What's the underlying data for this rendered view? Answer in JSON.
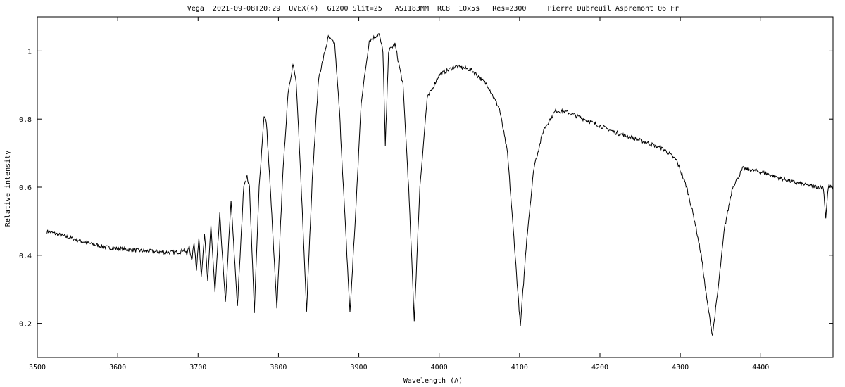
{
  "chart_data": {
    "type": "line",
    "title": "Vega  2021-09-08T20:29  UVEX(4)  G1200 Slit=25   ASI183MM  RC8  10x5s   Res=2300     Pierre Dubreuil Aspremont 06 Fr",
    "xlabel": "Wavelength (A)",
    "ylabel": "Relative intensity",
    "xlim": [
      3500,
      4490
    ],
    "ylim": [
      0.1,
      1.1
    ],
    "x_ticks": [
      "3500",
      "3600",
      "3700",
      "3800",
      "3900",
      "4000",
      "4100",
      "4200",
      "4300",
      "4400"
    ],
    "y_ticks": [
      "0.2",
      "0.4",
      "0.6",
      "0.8",
      "1"
    ],
    "grid": false,
    "legend": "none",
    "color": "#000000",
    "series": [
      {
        "points": [
          [
            3512,
            0.47
          ],
          [
            3520,
            0.465
          ],
          [
            3530,
            0.458
          ],
          [
            3540,
            0.452
          ],
          [
            3550,
            0.445
          ],
          [
            3560,
            0.438
          ],
          [
            3570,
            0.432
          ],
          [
            3580,
            0.426
          ],
          [
            3590,
            0.422
          ],
          [
            3600,
            0.42
          ],
          [
            3610,
            0.417
          ],
          [
            3620,
            0.415
          ],
          [
            3630,
            0.413
          ],
          [
            3640,
            0.412
          ],
          [
            3650,
            0.41
          ],
          [
            3660,
            0.409
          ],
          [
            3670,
            0.408
          ],
          [
            3678,
            0.41
          ],
          [
            3683,
            0.42
          ],
          [
            3686,
            0.4
          ],
          [
            3689,
            0.43
          ],
          [
            3692,
            0.38
          ],
          [
            3695,
            0.44
          ],
          [
            3698,
            0.36
          ],
          [
            3701,
            0.45
          ],
          [
            3704,
            0.34
          ],
          [
            3708,
            0.465
          ],
          [
            3712,
            0.32
          ],
          [
            3716,
            0.49
          ],
          [
            3721,
            0.29
          ],
          [
            3727,
            0.52
          ],
          [
            3734,
            0.26
          ],
          [
            3741,
            0.56
          ],
          [
            3749,
            0.25
          ],
          [
            3757,
            0.61
          ],
          [
            3761,
            0.63
          ],
          [
            3764,
            0.6
          ],
          [
            3770,
            0.235
          ],
          [
            3776,
            0.6
          ],
          [
            3782,
            0.81
          ],
          [
            3785,
            0.79
          ],
          [
            3791,
            0.55
          ],
          [
            3798,
            0.24
          ],
          [
            3805,
            0.62
          ],
          [
            3812,
            0.88
          ],
          [
            3818,
            0.96
          ],
          [
            3822,
            0.91
          ],
          [
            3828,
            0.62
          ],
          [
            3835,
            0.24
          ],
          [
            3842,
            0.62
          ],
          [
            3850,
            0.92
          ],
          [
            3862,
            1.04
          ],
          [
            3870,
            1.02
          ],
          [
            3876,
            0.82
          ],
          [
            3883,
            0.5
          ],
          [
            3889,
            0.23
          ],
          [
            3896,
            0.52
          ],
          [
            3903,
            0.85
          ],
          [
            3913,
            1.03
          ],
          [
            3925,
            1.05
          ],
          [
            3930,
            1.0
          ],
          [
            3933,
            0.72
          ],
          [
            3937,
            1.0
          ],
          [
            3945,
            1.02
          ],
          [
            3955,
            0.9
          ],
          [
            3962,
            0.6
          ],
          [
            3969,
            0.21
          ],
          [
            3976,
            0.6
          ],
          [
            3985,
            0.86
          ],
          [
            4000,
            0.93
          ],
          [
            4020,
            0.955
          ],
          [
            4040,
            0.945
          ],
          [
            4060,
            0.9
          ],
          [
            4075,
            0.83
          ],
          [
            4085,
            0.7
          ],
          [
            4093,
            0.45
          ],
          [
            4101,
            0.19
          ],
          [
            4109,
            0.45
          ],
          [
            4118,
            0.66
          ],
          [
            4130,
            0.77
          ],
          [
            4145,
            0.825
          ],
          [
            4160,
            0.82
          ],
          [
            4180,
            0.8
          ],
          [
            4200,
            0.78
          ],
          [
            4220,
            0.76
          ],
          [
            4240,
            0.745
          ],
          [
            4260,
            0.73
          ],
          [
            4280,
            0.71
          ],
          [
            4295,
            0.68
          ],
          [
            4308,
            0.6
          ],
          [
            4318,
            0.5
          ],
          [
            4326,
            0.4
          ],
          [
            4333,
            0.27
          ],
          [
            4340,
            0.165
          ],
          [
            4347,
            0.3
          ],
          [
            4355,
            0.48
          ],
          [
            4365,
            0.6
          ],
          [
            4378,
            0.655
          ],
          [
            4400,
            0.645
          ],
          [
            4420,
            0.63
          ],
          [
            4440,
            0.615
          ],
          [
            4460,
            0.605
          ],
          [
            4475,
            0.6
          ],
          [
            4478,
            0.6
          ],
          [
            4481,
            0.51
          ],
          [
            4484,
            0.6
          ],
          [
            4490,
            0.6
          ]
        ]
      }
    ]
  }
}
